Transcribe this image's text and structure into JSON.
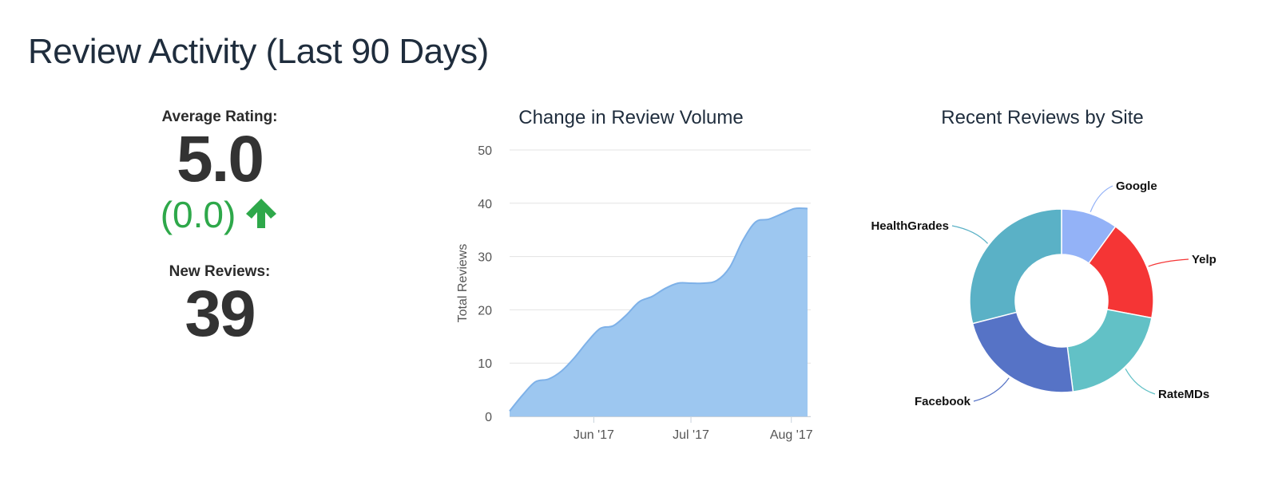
{
  "page": {
    "title": "Review Activity (Last 90 Days)"
  },
  "stats": {
    "avg_rating_label": "Average Rating:",
    "avg_rating_value": "5.0",
    "rating_change": "(0.0)",
    "rating_trend": "up-arrow-icon",
    "new_reviews_label": "New Reviews:",
    "new_reviews_value": "39"
  },
  "colors": {
    "area": "#9dc7f0",
    "area_line": "#7eb1e8",
    "trend_up": "#2ea84a"
  },
  "chart_data": [
    {
      "type": "area",
      "title": "Change in Review Volume",
      "xlabel": "",
      "ylabel": "Total Reviews",
      "ylim": [
        0,
        50
      ],
      "yticks": [
        0,
        10,
        20,
        30,
        40,
        50
      ],
      "xticks": [
        "Jun '17",
        "Jul '17",
        "Aug '17"
      ],
      "grid": true,
      "series": [
        {
          "x": [
            "2017-05-06",
            "2017-05-10",
            "2017-05-14",
            "2017-05-18",
            "2017-05-22",
            "2017-05-26",
            "2017-05-30",
            "2017-06-03",
            "2017-06-07",
            "2017-06-11",
            "2017-06-15",
            "2017-06-19",
            "2017-06-23",
            "2017-06-27",
            "2017-07-01",
            "2017-07-05",
            "2017-07-09",
            "2017-07-13",
            "2017-07-17",
            "2017-07-21",
            "2017-07-25",
            "2017-07-29",
            "2017-08-02",
            "2017-08-06"
          ],
          "values": [
            1,
            4,
            6.5,
            7,
            8.5,
            11,
            14,
            16.5,
            17,
            19,
            21.5,
            22.5,
            24,
            25,
            25,
            25,
            25.5,
            28,
            33,
            36.5,
            37,
            38,
            39,
            39
          ]
        }
      ]
    },
    {
      "type": "pie",
      "title": "Recent Reviews by Site",
      "legend": "none",
      "slices": [
        {
          "label": "Google",
          "value": 10,
          "color": "#93b2f7"
        },
        {
          "label": "Yelp",
          "value": 18,
          "color": "#f53535"
        },
        {
          "label": "RateMDs",
          "value": 20,
          "color": "#62c1c6"
        },
        {
          "label": "Facebook",
          "value": 23,
          "color": "#5673c6"
        },
        {
          "label": "HealthGrades",
          "value": 29,
          "color": "#5ab1c6"
        }
      ]
    }
  ]
}
